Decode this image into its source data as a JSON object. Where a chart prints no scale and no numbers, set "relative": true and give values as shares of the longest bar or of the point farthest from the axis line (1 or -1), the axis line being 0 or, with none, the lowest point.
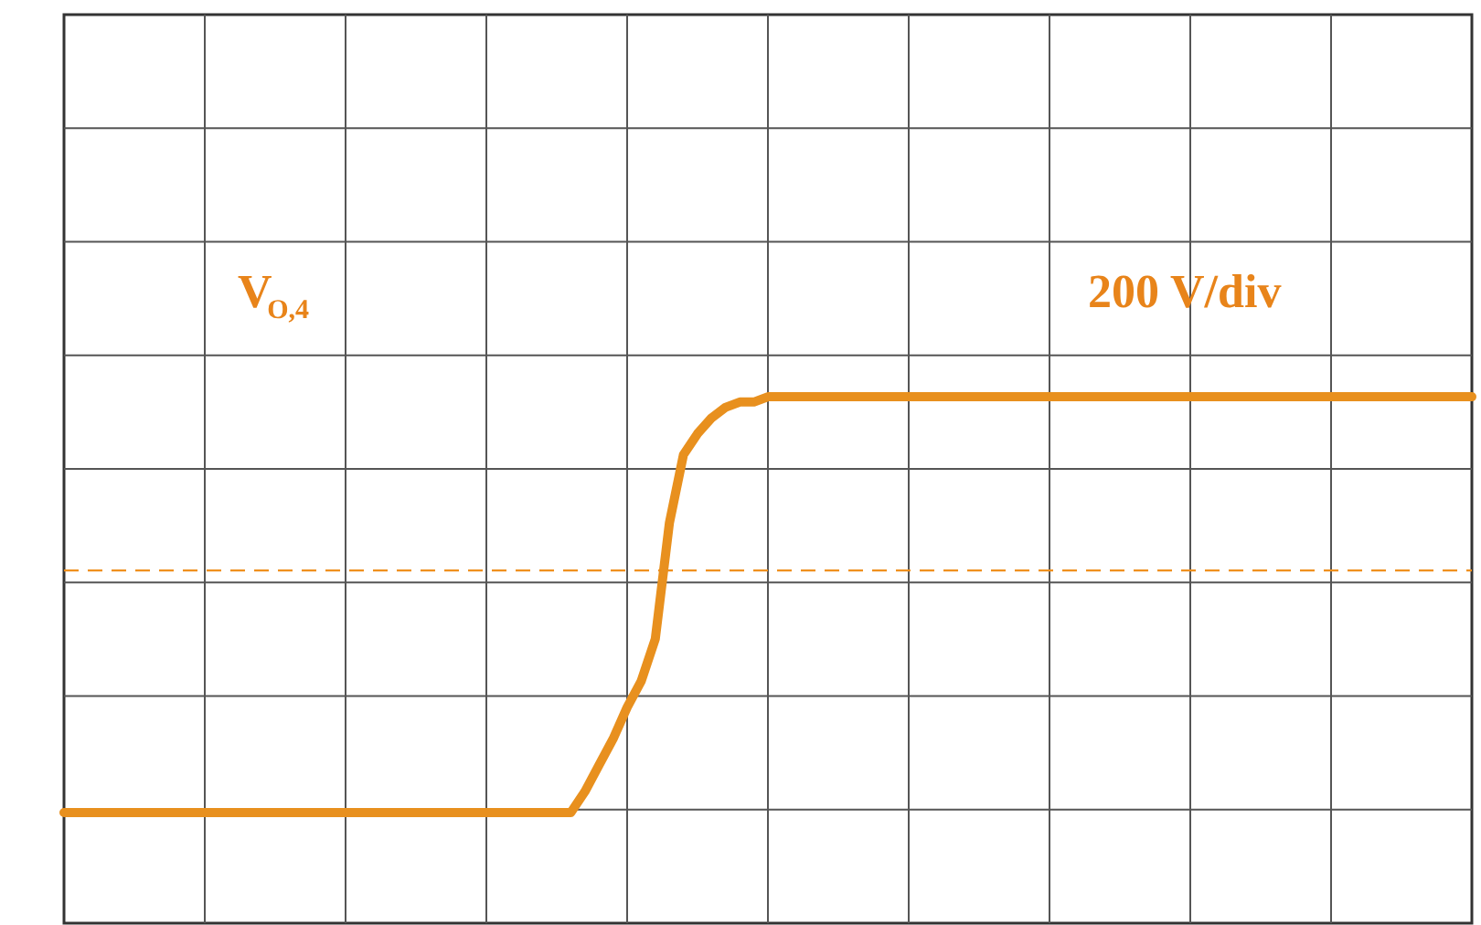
{
  "chart_data": {
    "type": "line",
    "relative": true,
    "grid": true,
    "marker": "none",
    "line_style": "solid",
    "categories": [
      null,
      null,
      null,
      null,
      null,
      null,
      null,
      null,
      null,
      null,
      null,
      null,
      null,
      null,
      null,
      null,
      null,
      null,
      null,
      null,
      null,
      null,
      null,
      null,
      null,
      null,
      null,
      null,
      null,
      null,
      null,
      null,
      null,
      null,
      null,
      null,
      null,
      null,
      null,
      null,
      null,
      null,
      null,
      null,
      null,
      null,
      null,
      null,
      null,
      null,
      null,
      null,
      null,
      null,
      null,
      null,
      null,
      null,
      null,
      null,
      null,
      null,
      null,
      null,
      null,
      null,
      null,
      null,
      null,
      null,
      null,
      null,
      null,
      null,
      null,
      null,
      null,
      null,
      null,
      null,
      null,
      null,
      null,
      null,
      null,
      null,
      null,
      null,
      null,
      null,
      null,
      null,
      null,
      null,
      null,
      null,
      null,
      null,
      null,
      null,
      null
    ],
    "series": [
      {
        "color": "#e8901e",
        "values": [
          0.21,
          0.21,
          0.21,
          0.21,
          0.21,
          0.21,
          0.21,
          0.21,
          0.21,
          0.21,
          0.21,
          0.21,
          0.21,
          0.21,
          0.21,
          0.21,
          0.21,
          0.21,
          0.21,
          0.21,
          0.21,
          0.21,
          0.21,
          0.21,
          0.21,
          0.21,
          0.21,
          0.21,
          0.21,
          0.21,
          0.21,
          0.21,
          0.21,
          0.21,
          0.21,
          0.21,
          0.21,
          0.25,
          0.3,
          0.35,
          0.41,
          0.46,
          0.54,
          0.76,
          0.89,
          0.93,
          0.96,
          0.98,
          0.99,
          0.99,
          1,
          1,
          1,
          1,
          1,
          1,
          1,
          1,
          1,
          1,
          1,
          1,
          1,
          1,
          1,
          1,
          1,
          1,
          1,
          1,
          1,
          1,
          1,
          1,
          1,
          1,
          1,
          1,
          1,
          1,
          1,
          1,
          1,
          1,
          1,
          1,
          1,
          1,
          1,
          1,
          1,
          1,
          1,
          1,
          1,
          1,
          1,
          1,
          1,
          1,
          1
        ]
      }
    ],
    "ref_lines": [
      {
        "axis": "y",
        "value": 0.67,
        "label": null,
        "color": "#f0901e",
        "line_style": "dashed"
      }
    ],
    "annotations": [
      "V$_{O,4}$",
      "200 V/div"
    ]
  }
}
